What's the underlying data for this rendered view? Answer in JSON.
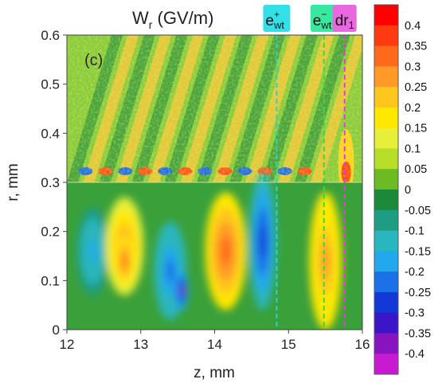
{
  "chart_data": {
    "type": "heatmap",
    "title": {
      "base": "W",
      "sub": "r",
      "rest": " (GV/m)"
    },
    "panel_label": "(c)",
    "xlabel": "z, mm",
    "ylabel": "r, mm",
    "xlim": [
      12,
      16
    ],
    "ylim": [
      0,
      0.6
    ],
    "x_ticks": [
      "12",
      "13",
      "14",
      "15",
      "16"
    ],
    "y_ticks": [
      "0",
      "0.1",
      "0.2",
      "0.3",
      "0.4",
      "0.5",
      "0.6"
    ],
    "markers": [
      {
        "base": "e",
        "sup": "+",
        "sub": "wt",
        "z": 14.84,
        "color": "#2ad1d1",
        "box": "#33e0e8"
      },
      {
        "base": "e",
        "sup": "−",
        "sub": "wt",
        "z": 15.48,
        "color": "#39d84a",
        "box": "#38e8a0"
      },
      {
        "base": "dr",
        "sup": "",
        "sub": "1",
        "z": 15.76,
        "color": "#e83cd6",
        "box": "#e868e0"
      }
    ],
    "colorbar": {
      "ticks": [
        "0.4",
        "0.35",
        "0.3",
        "0.25",
        "0.2",
        "0.15",
        "0.1",
        "0.05",
        "0",
        "-0.05",
        "-0.1",
        "-0.15",
        "-0.2",
        "-0.25",
        "-0.3",
        "-0.35",
        "-0.4"
      ],
      "colors": [
        "#ff0000",
        "#ff3a10",
        "#ff6a1a",
        "#ff9a28",
        "#ffc61e",
        "#ffe800",
        "#e8ef38",
        "#b8de2a",
        "#6cba24",
        "#1a8a3a",
        "#1e9d82",
        "#2ab6be",
        "#22a8ec",
        "#1c70e8",
        "#1238d8",
        "#3a16c8",
        "#8814c0",
        "#c81ad0"
      ]
    },
    "plasma_region_r": 0.3,
    "blobs": [
      {
        "z": 12.35,
        "r": 0.16,
        "dz": 0.22,
        "dr": 0.09,
        "v": -0.2
      },
      {
        "z": 12.78,
        "r": 0.17,
        "dz": 0.26,
        "dr": 0.1,
        "v": 0.24
      },
      {
        "z": 12.78,
        "r": 0.14,
        "dz": 0.12,
        "dr": 0.05,
        "v": 0.3
      },
      {
        "z": 13.4,
        "r": 0.12,
        "dz": 0.22,
        "dr": 0.1,
        "v": -0.25
      },
      {
        "z": 13.55,
        "r": 0.08,
        "dz": 0.09,
        "dr": 0.04,
        "v": -0.38
      },
      {
        "z": 14.15,
        "r": 0.16,
        "dz": 0.28,
        "dr": 0.12,
        "v": 0.32
      },
      {
        "z": 14.65,
        "r": 0.18,
        "dz": 0.18,
        "dr": 0.14,
        "v": -0.32
      },
      {
        "z": 15.5,
        "r": 0.14,
        "dz": 0.22,
        "dr": 0.14,
        "v": 0.25
      }
    ]
  }
}
